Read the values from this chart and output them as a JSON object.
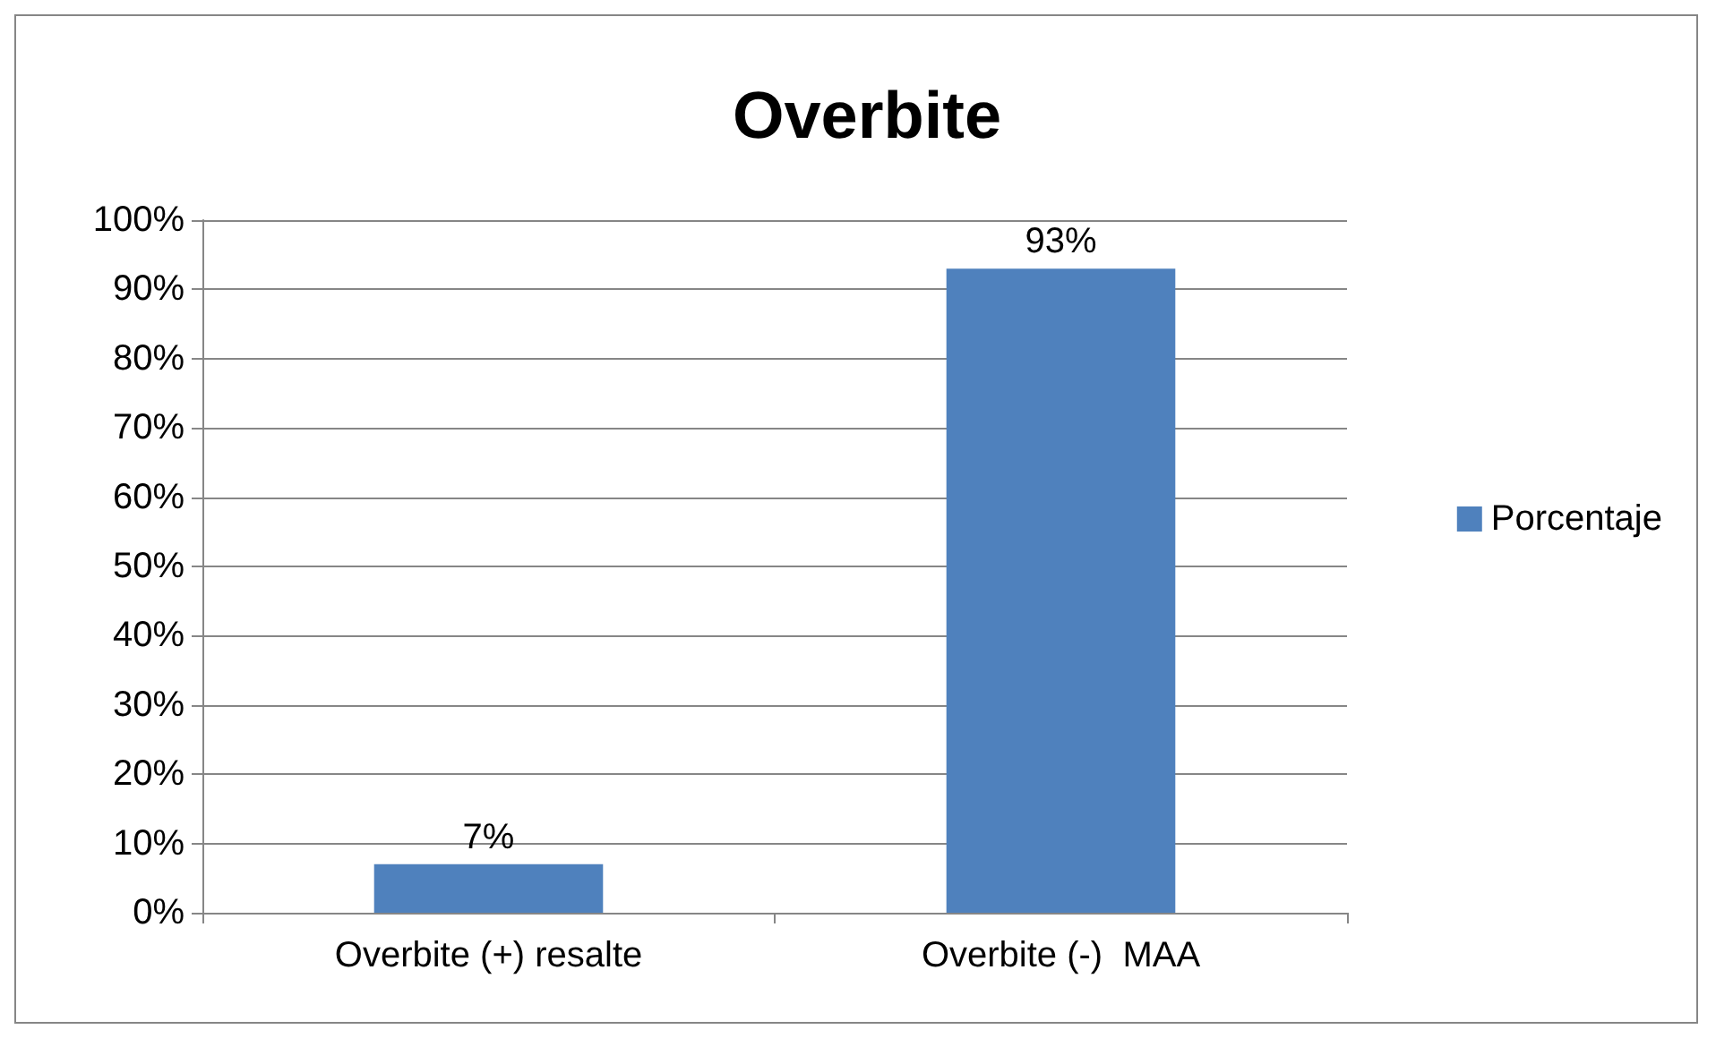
{
  "chart_data": {
    "type": "bar",
    "title": "Overbite",
    "categories": [
      "Overbite (+) resalte",
      "Overbite (-)  MAA"
    ],
    "series": [
      {
        "name": "Porcentaje",
        "color": "#4f81bd",
        "values": [
          7,
          93
        ],
        "value_labels": [
          "7%",
          "93%"
        ]
      }
    ],
    "ylim": [
      0,
      100
    ],
    "yticks": [
      {
        "value": 0,
        "label": "0%"
      },
      {
        "value": 10,
        "label": "10%"
      },
      {
        "value": 20,
        "label": "20%"
      },
      {
        "value": 30,
        "label": "30%"
      },
      {
        "value": 40,
        "label": "40%"
      },
      {
        "value": 50,
        "label": "50%"
      },
      {
        "value": 60,
        "label": "60%"
      },
      {
        "value": 70,
        "label": "70%"
      },
      {
        "value": 80,
        "label": "80%"
      },
      {
        "value": 90,
        "label": "90%"
      },
      {
        "value": 100,
        "label": "100%"
      }
    ],
    "grid": "y",
    "legend": "right"
  }
}
